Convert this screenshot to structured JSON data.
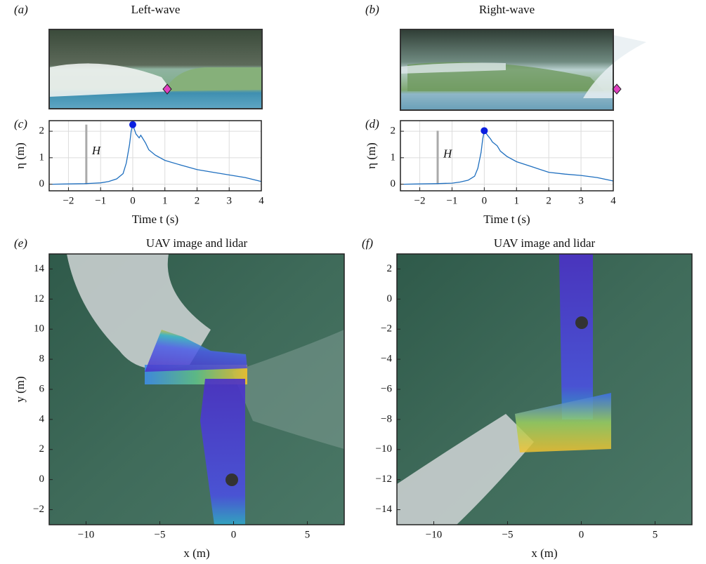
{
  "chart_data": [
    {
      "type": "image",
      "panel_label": "(a)",
      "title": "Left-wave"
    },
    {
      "type": "image",
      "panel_label": "(b)",
      "title": "Right-wave"
    },
    {
      "type": "line",
      "panel_label": "(c)",
      "ylabel": "η (m)",
      "xlabel": "Time t (s)",
      "annotation": "H",
      "color": "#1f6fbf",
      "x": [
        -2.5,
        -2,
        -1.5,
        -1,
        -0.75,
        -0.5,
        -0.3,
        -0.2,
        -0.1,
        -0.05,
        0,
        0.1,
        0.2,
        0.25,
        0.3,
        0.4,
        0.5,
        0.7,
        1,
        1.5,
        2,
        2.5,
        3,
        3.5,
        4
      ],
      "values": [
        0,
        0.01,
        0.02,
        0.05,
        0.1,
        0.2,
        0.4,
        0.8,
        1.5,
        2.0,
        2.25,
        1.9,
        1.75,
        1.85,
        1.75,
        1.55,
        1.3,
        1.1,
        0.9,
        0.72,
        0.55,
        0.45,
        0.35,
        0.25,
        0.1
      ],
      "peak": {
        "x": 0,
        "y": 2.25
      },
      "peak_color": "#0a1fe0",
      "xlim": [
        -2.6,
        4
      ],
      "ylim": [
        -0.25,
        2.4
      ],
      "xticks": [
        {
          "value": -2,
          "label": "−2"
        },
        {
          "value": -1,
          "label": "−1"
        },
        0,
        1,
        2,
        3,
        4
      ],
      "yticks": [
        0,
        1,
        2
      ],
      "grid": true
    },
    {
      "type": "line",
      "panel_label": "(d)",
      "ylabel": "η (m)",
      "xlabel": "Time t (s)",
      "annotation": "H",
      "color": "#1f6fbf",
      "x": [
        -2.5,
        -2,
        -1.5,
        -1,
        -0.75,
        -0.5,
        -0.3,
        -0.2,
        -0.1,
        -0.05,
        0,
        0.1,
        0.2,
        0.25,
        0.3,
        0.4,
        0.5,
        0.7,
        1,
        1.5,
        2,
        2.5,
        3,
        3.5,
        4
      ],
      "values": [
        0,
        0.01,
        0.02,
        0.04,
        0.08,
        0.15,
        0.3,
        0.6,
        1.2,
        1.7,
        2.02,
        1.85,
        1.7,
        1.6,
        1.55,
        1.45,
        1.25,
        1.05,
        0.85,
        0.65,
        0.45,
        0.38,
        0.33,
        0.25,
        0.12
      ],
      "peak": {
        "x": 0,
        "y": 2.02
      },
      "peak_color": "#0a1fe0",
      "xlim": [
        -2.6,
        4
      ],
      "ylim": [
        -0.25,
        2.4
      ],
      "xticks": [
        {
          "value": -2,
          "label": "−2"
        },
        {
          "value": -1,
          "label": "−1"
        },
        0,
        1,
        2,
        3,
        4
      ],
      "yticks": [
        0,
        1,
        2
      ],
      "grid": true
    },
    {
      "type": "image",
      "panel_label": "(e)",
      "title": "UAV image and lidar",
      "xlabel": "x (m)",
      "ylabel": "y (m)",
      "xlim": [
        -12.5,
        7.5
      ],
      "ylim": [
        -3,
        15
      ],
      "xticks": [
        {
          "value": -10,
          "label": "−10"
        },
        {
          "value": -5,
          "label": "−5"
        },
        0,
        5
      ],
      "yticks": [
        {
          "value": -2,
          "label": "−2"
        },
        0,
        2,
        4,
        6,
        8,
        10,
        12,
        14
      ],
      "grid": false
    },
    {
      "type": "image",
      "panel_label": "(f)",
      "title": "UAV image and lidar",
      "xlabel": "x (m)",
      "xlim": [
        -12.5,
        7.5
      ],
      "ylim": [
        -15,
        3
      ],
      "xticks": [
        {
          "value": -10,
          "label": "−10"
        },
        {
          "value": -5,
          "label": "−5"
        },
        0,
        5
      ],
      "yticks": [
        {
          "value": -14,
          "label": "−14"
        },
        {
          "value": -12,
          "label": "−12"
        },
        {
          "value": -10,
          "label": "−10"
        },
        {
          "value": -8,
          "label": "−8"
        },
        {
          "value": -6,
          "label": "−6"
        },
        {
          "value": -4,
          "label": "−4"
        },
        {
          "value": -2,
          "label": "−2"
        },
        0,
        2
      ],
      "grid": false
    }
  ]
}
